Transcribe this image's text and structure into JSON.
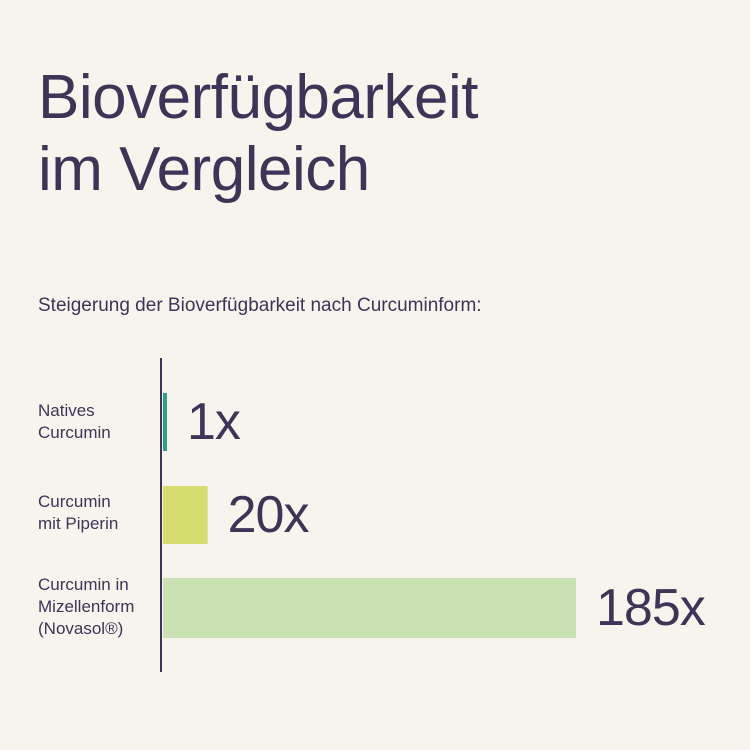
{
  "title": {
    "line1": "Bioverfügbarkeit",
    "line2": "im Vergleich"
  },
  "subtitle": "Steigerung der Bioverfügbarkeit nach Curcuminform:",
  "colors": {
    "background": "#f7f4ee",
    "text": "#3d3557",
    "axis": "#3d3557"
  },
  "chart_data": {
    "type": "bar",
    "orientation": "horizontal",
    "title": "Bioverfügbarkeit im Vergleich",
    "subtitle": "Steigerung der Bioverfügbarkeit nach Curcuminform:",
    "categories": [
      [
        "Natives",
        "Curcumin"
      ],
      [
        "Curcumin",
        "mit Piperin"
      ],
      [
        "Curcumin in",
        "Mizellenform",
        "(Novasol®)"
      ]
    ],
    "values": [
      1,
      20,
      185
    ],
    "value_labels": [
      "1x",
      "20x",
      "185x"
    ],
    "bar_colors": [
      "#2f9e8f",
      "#d6dd6e",
      "#cbe0b0"
    ],
    "xlim": [
      0,
      185
    ],
    "grid": false,
    "legend": "none"
  }
}
